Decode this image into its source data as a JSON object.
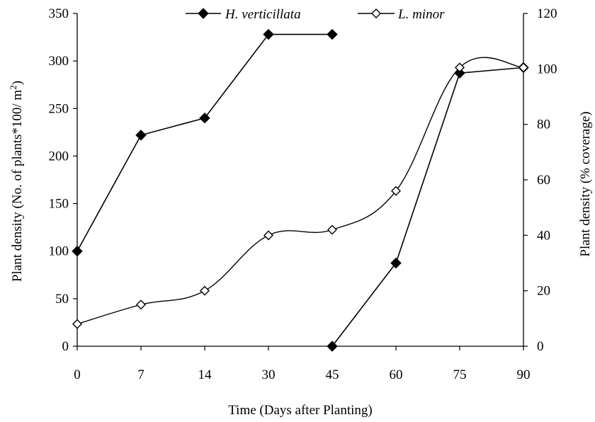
{
  "chart_data": {
    "type": "line",
    "categories": [
      "0",
      "7",
      "14",
      "30",
      "45",
      "60",
      "75",
      "90"
    ],
    "xlabel": "Time (Days after Planting)",
    "ylabel_left_main": "Plant density (No. of  plants*100/ m",
    "ylabel_left_sup": "2",
    "ylabel_left_end": ")",
    "ylabel_right": "Plant density (% coverage)",
    "ylim_left": [
      0,
      350
    ],
    "yticks_left": [
      "0",
      "50",
      "100",
      "150",
      "200",
      "250",
      "300",
      "350"
    ],
    "ylim_right": [
      0,
      120
    ],
    "yticks_right": [
      "0",
      "20",
      "40",
      "60",
      "80",
      "100",
      "120"
    ],
    "grid": false,
    "legend_position": "top-center",
    "series": [
      {
        "name": "H. verticillata",
        "segments": [
          {
            "axis": "left",
            "points": [
              [
                0,
                100
              ],
              [
                1,
                222
              ],
              [
                2,
                240
              ],
              [
                3,
                328
              ],
              [
                4,
                328
              ]
            ]
          },
          {
            "axis": "right",
            "points": [
              [
                4,
                0
              ],
              [
                5,
                30
              ],
              [
                6,
                98.5
              ],
              [
                7,
                100.5
              ]
            ]
          }
        ],
        "marker": "filled-diamond",
        "color": "#000000",
        "smooth": false
      },
      {
        "name": "L. minor",
        "axis": "right",
        "points": [
          [
            0,
            8
          ],
          [
            1,
            15
          ],
          [
            2,
            20
          ],
          [
            3,
            40
          ],
          [
            4,
            42
          ],
          [
            5,
            56
          ],
          [
            6,
            100.5
          ],
          [
            7,
            100.5
          ]
        ],
        "marker": "open-diamond",
        "color": "#000000",
        "smooth": true
      }
    ]
  }
}
